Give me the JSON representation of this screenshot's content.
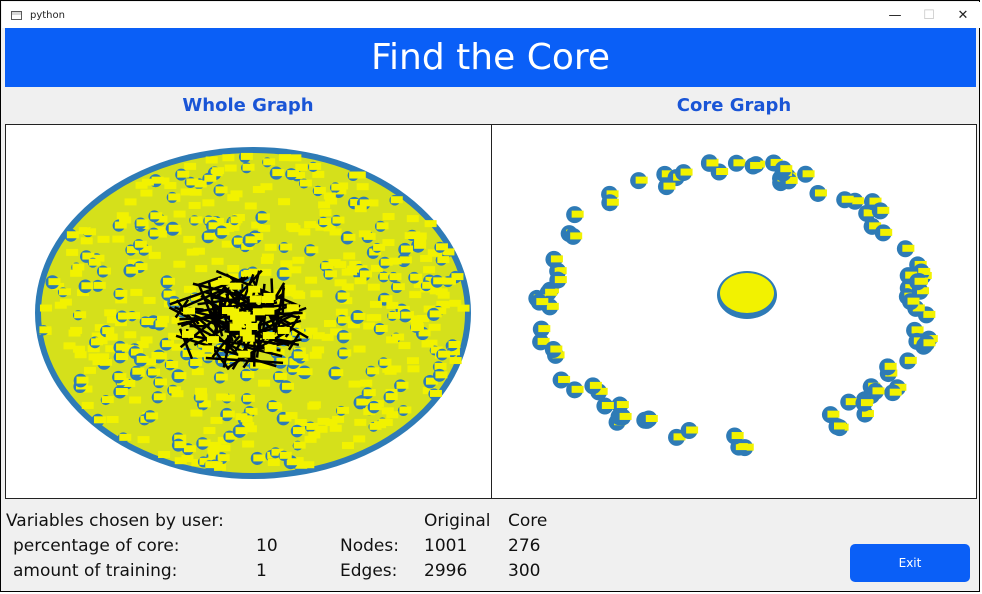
{
  "window": {
    "title": "python",
    "minimize_glyph": "—",
    "maximize_glyph": "☐",
    "close_glyph": "✕"
  },
  "header": {
    "title": "Find the Core"
  },
  "panels": {
    "left_title": "Whole Graph",
    "right_title": "Core Graph"
  },
  "graph_style": {
    "node_color": "#2e7bb6",
    "label_color": "#f2f200",
    "edge_color": "#000000"
  },
  "info": {
    "variables_heading": "Variables chosen by user:",
    "percentage_label": "percentage of core:",
    "percentage_value": "10",
    "training_label": "amount of training:",
    "training_value": "1",
    "col_original": "Original",
    "col_core": "Core",
    "nodes_label": "Nodes:",
    "nodes_original": "1001",
    "nodes_core": "276",
    "edges_label": "Edges:",
    "edges_original": "2996",
    "edges_core": "300"
  },
  "exit_button": {
    "label": "Exit"
  }
}
